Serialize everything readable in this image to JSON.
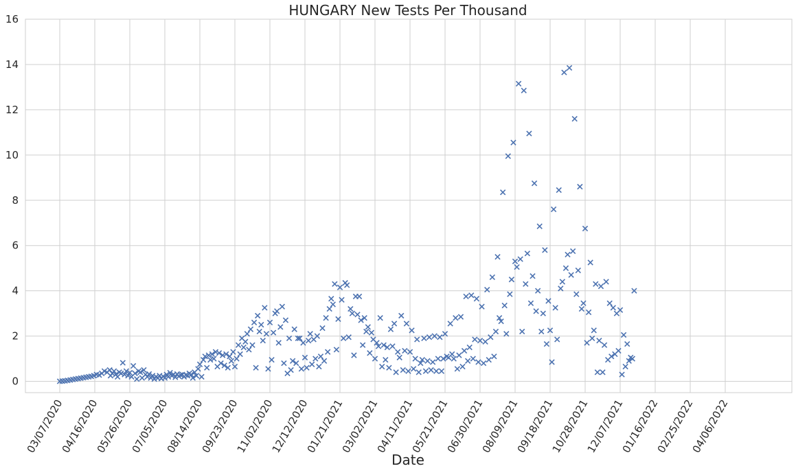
{
  "chart_data": {
    "type": "scatter",
    "title": "HUNGARY   New Tests Per Thousand",
    "xlabel": "Date",
    "ylabel": "",
    "ylim": [
      0,
      16
    ],
    "yticks": [
      0,
      2,
      4,
      6,
      8,
      10,
      12,
      14,
      16
    ],
    "xticks": [
      "03/07/2020",
      "04/16/2020",
      "05/26/2020",
      "07/05/2020",
      "08/14/2020",
      "09/23/2020",
      "11/02/2020",
      "12/12/2020",
      "01/21/2021",
      "03/02/2021",
      "04/11/2021",
      "05/21/2021",
      "06/30/2021",
      "08/09/2021",
      "09/18/2021",
      "10/28/2021",
      "12/07/2021",
      "01/16/2022",
      "02/25/2022",
      "04/06/2022"
    ],
    "grid": true,
    "marker": "x",
    "marker_color": "#4c72b0",
    "start_date": "03/07/2020",
    "series": [
      {
        "points": [
          [
            0,
            0
          ],
          [
            3,
            0.01
          ],
          [
            6,
            0.02
          ],
          [
            9,
            0.04
          ],
          [
            12,
            0.06
          ],
          [
            15,
            0.08
          ],
          [
            18,
            0.1
          ],
          [
            21,
            0.12
          ],
          [
            24,
            0.14
          ],
          [
            27,
            0.16
          ],
          [
            30,
            0.18
          ],
          [
            33,
            0.2
          ],
          [
            36,
            0.22
          ],
          [
            39,
            0.25
          ],
          [
            42,
            0.3
          ],
          [
            45,
            0.28
          ],
          [
            48,
            0.35
          ],
          [
            51,
            0.45
          ],
          [
            54,
            0.4
          ],
          [
            57,
            0.5
          ],
          [
            58,
            0.25
          ],
          [
            60,
            0.35
          ],
          [
            62,
            0.45
          ],
          [
            64,
            0.3
          ],
          [
            66,
            0.2
          ],
          [
            68,
            0.4
          ],
          [
            70,
            0.35
          ],
          [
            72,
            0.82
          ],
          [
            74,
            0.3
          ],
          [
            76,
            0.45
          ],
          [
            78,
            0.25
          ],
          [
            80,
            0.38
          ],
          [
            82,
            0.2
          ],
          [
            84,
            0.68
          ],
          [
            86,
            0.35
          ],
          [
            88,
            0.1
          ],
          [
            90,
            0.45
          ],
          [
            92,
            0.4
          ],
          [
            94,
            0.15
          ],
          [
            96,
            0.5
          ],
          [
            98,
            0.3
          ],
          [
            100,
            0.2
          ],
          [
            102,
            0.32
          ],
          [
            104,
            0.15
          ],
          [
            106,
            0.25
          ],
          [
            108,
            0.1
          ],
          [
            110,
            0.2
          ],
          [
            112,
            0.15
          ],
          [
            114,
            0.25
          ],
          [
            116,
            0.12
          ],
          [
            118,
            0.22
          ],
          [
            120,
            0.15
          ],
          [
            122,
            0.3
          ],
          [
            124,
            0.2
          ],
          [
            126,
            0.38
          ],
          [
            128,
            0.25
          ],
          [
            130,
            0.3
          ],
          [
            132,
            0.18
          ],
          [
            134,
            0.32
          ],
          [
            136,
            0.22
          ],
          [
            138,
            0.28
          ],
          [
            140,
            0.3
          ],
          [
            142,
            0.2
          ],
          [
            144,
            0.28
          ],
          [
            146,
            0.25
          ],
          [
            148,
            0.35
          ],
          [
            150,
            0.3
          ],
          [
            152,
            0.15
          ],
          [
            154,
            0.4
          ],
          [
            156,
            0.25
          ],
          [
            158,
            0.55
          ],
          [
            160,
            0.75
          ],
          [
            162,
            0.2
          ],
          [
            164,
            0.95
          ],
          [
            166,
            1.1
          ],
          [
            168,
            0.6
          ],
          [
            170,
            1.15
          ],
          [
            172,
            0.95
          ],
          [
            174,
            1.2
          ],
          [
            176,
            1.0
          ],
          [
            178,
            1.3
          ],
          [
            180,
            0.65
          ],
          [
            182,
            1.25
          ],
          [
            184,
            0.8
          ],
          [
            186,
            1.15
          ],
          [
            188,
            0.7
          ],
          [
            190,
            1.2
          ],
          [
            192,
            0.6
          ],
          [
            194,
            1.1
          ],
          [
            196,
            0.9
          ],
          [
            198,
            1.3
          ],
          [
            200,
            0.65
          ],
          [
            202,
            1.0
          ],
          [
            204,
            1.6
          ],
          [
            206,
            1.2
          ],
          [
            208,
            1.9
          ],
          [
            210,
            1.5
          ],
          [
            212,
            1.75
          ],
          [
            214,
            2.1
          ],
          [
            216,
            1.4
          ],
          [
            218,
            2.3
          ],
          [
            220,
            1.6
          ],
          [
            222,
            2.6
          ],
          [
            224,
            0.6
          ],
          [
            226,
            2.9
          ],
          [
            228,
            2.2
          ],
          [
            230,
            2.5
          ],
          [
            232,
            1.8
          ],
          [
            234,
            3.25
          ],
          [
            236,
            2.1
          ],
          [
            238,
            0.55
          ],
          [
            240,
            2.6
          ],
          [
            242,
            0.95
          ],
          [
            244,
            2.15
          ],
          [
            246,
            3.0
          ],
          [
            248,
            3.1
          ],
          [
            250,
            1.7
          ],
          [
            252,
            2.4
          ],
          [
            254,
            3.3
          ],
          [
            256,
            0.8
          ],
          [
            258,
            2.7
          ],
          [
            260,
            0.35
          ],
          [
            262,
            1.9
          ],
          [
            264,
            0.5
          ],
          [
            266,
            0.9
          ],
          [
            268,
            2.3
          ],
          [
            270,
            0.8
          ],
          [
            272,
            1.9
          ],
          [
            274,
            1.9
          ],
          [
            276,
            0.55
          ],
          [
            278,
            1.7
          ],
          [
            280,
            1.05
          ],
          [
            282,
            0.6
          ],
          [
            284,
            1.8
          ],
          [
            286,
            2.1
          ],
          [
            288,
            0.75
          ],
          [
            290,
            1.85
          ],
          [
            292,
            1.0
          ],
          [
            294,
            2.0
          ],
          [
            296,
            0.65
          ],
          [
            298,
            1.1
          ],
          [
            300,
            2.35
          ],
          [
            302,
            0.9
          ],
          [
            304,
            2.8
          ],
          [
            306,
            1.3
          ],
          [
            308,
            3.2
          ],
          [
            310,
            3.65
          ],
          [
            312,
            3.4
          ],
          [
            314,
            4.3
          ],
          [
            316,
            1.4
          ],
          [
            318,
            2.75
          ],
          [
            320,
            4.15
          ],
          [
            322,
            3.6
          ],
          [
            324,
            1.9
          ],
          [
            326,
            4.35
          ],
          [
            328,
            4.25
          ],
          [
            330,
            1.95
          ],
          [
            332,
            3.2
          ],
          [
            334,
            3.0
          ],
          [
            336,
            1.15
          ],
          [
            338,
            3.75
          ],
          [
            340,
            2.95
          ],
          [
            342,
            3.75
          ],
          [
            344,
            2.7
          ],
          [
            346,
            1.6
          ],
          [
            348,
            2.8
          ],
          [
            350,
            2.2
          ],
          [
            352,
            2.4
          ],
          [
            354,
            1.25
          ],
          [
            356,
            2.15
          ],
          [
            358,
            1.85
          ],
          [
            360,
            1.0
          ],
          [
            362,
            1.7
          ],
          [
            364,
            1.55
          ],
          [
            366,
            2.8
          ],
          [
            368,
            0.65
          ],
          [
            370,
            1.6
          ],
          [
            372,
            0.95
          ],
          [
            374,
            1.5
          ],
          [
            376,
            0.6
          ],
          [
            378,
            2.3
          ],
          [
            380,
            1.55
          ],
          [
            382,
            2.55
          ],
          [
            384,
            0.4
          ],
          [
            386,
            1.3
          ],
          [
            388,
            1.05
          ],
          [
            390,
            2.9
          ],
          [
            392,
            0.5
          ],
          [
            394,
            1.35
          ],
          [
            396,
            2.55
          ],
          [
            398,
            0.45
          ],
          [
            400,
            1.3
          ],
          [
            402,
            2.25
          ],
          [
            404,
            0.55
          ],
          [
            406,
            1.0
          ],
          [
            408,
            1.85
          ],
          [
            410,
            0.4
          ],
          [
            412,
            0.8
          ],
          [
            414,
            0.95
          ],
          [
            416,
            1.9
          ],
          [
            418,
            0.45
          ],
          [
            420,
            0.9
          ],
          [
            422,
            1.95
          ],
          [
            424,
            0.5
          ],
          [
            426,
            0.85
          ],
          [
            428,
            2.0
          ],
          [
            430,
            0.45
          ],
          [
            432,
            1.0
          ],
          [
            434,
            1.95
          ],
          [
            436,
            0.45
          ],
          [
            438,
            1.0
          ],
          [
            440,
            2.1
          ],
          [
            442,
            1.1
          ],
          [
            444,
            1.05
          ],
          [
            446,
            2.55
          ],
          [
            448,
            1.2
          ],
          [
            450,
            1.0
          ],
          [
            452,
            2.8
          ],
          [
            454,
            0.55
          ],
          [
            456,
            1.15
          ],
          [
            458,
            2.85
          ],
          [
            460,
            0.65
          ],
          [
            462,
            1.35
          ],
          [
            464,
            3.75
          ],
          [
            466,
            0.9
          ],
          [
            468,
            1.5
          ],
          [
            470,
            3.8
          ],
          [
            472,
            1.0
          ],
          [
            474,
            1.85
          ],
          [
            476,
            3.65
          ],
          [
            478,
            0.85
          ],
          [
            480,
            1.8
          ],
          [
            482,
            3.3
          ],
          [
            484,
            0.8
          ],
          [
            486,
            1.75
          ],
          [
            488,
            4.05
          ],
          [
            490,
            0.95
          ],
          [
            492,
            1.95
          ],
          [
            494,
            4.6
          ],
          [
            496,
            1.1
          ],
          [
            498,
            2.2
          ],
          [
            500,
            5.5
          ],
          [
            502,
            2.8
          ],
          [
            504,
            2.65
          ],
          [
            506,
            8.35
          ],
          [
            508,
            3.35
          ],
          [
            510,
            2.1
          ],
          [
            512,
            9.95
          ],
          [
            514,
            3.85
          ],
          [
            516,
            4.5
          ],
          [
            518,
            10.55
          ],
          [
            520,
            5.3
          ],
          [
            522,
            5.05
          ],
          [
            524,
            13.15
          ],
          [
            526,
            5.4
          ],
          [
            528,
            2.2
          ],
          [
            530,
            12.85
          ],
          [
            532,
            4.3
          ],
          [
            534,
            5.65
          ],
          [
            536,
            10.95
          ],
          [
            538,
            3.45
          ],
          [
            540,
            4.65
          ],
          [
            542,
            8.75
          ],
          [
            544,
            3.1
          ],
          [
            546,
            4.0
          ],
          [
            548,
            6.85
          ],
          [
            550,
            2.2
          ],
          [
            552,
            3.0
          ],
          [
            554,
            5.8
          ],
          [
            556,
            1.65
          ],
          [
            558,
            3.55
          ],
          [
            560,
            2.25
          ],
          [
            562,
            0.85
          ],
          [
            564,
            7.6
          ],
          [
            566,
            3.25
          ],
          [
            568,
            1.85
          ],
          [
            570,
            8.45
          ],
          [
            572,
            4.1
          ],
          [
            574,
            4.4
          ],
          [
            576,
            13.65
          ],
          [
            578,
            5.0
          ],
          [
            580,
            5.6
          ],
          [
            582,
            13.85
          ],
          [
            584,
            4.7
          ],
          [
            586,
            5.75
          ],
          [
            588,
            11.6
          ],
          [
            590,
            3.85
          ],
          [
            592,
            4.9
          ],
          [
            594,
            8.6
          ],
          [
            596,
            3.2
          ],
          [
            598,
            3.45
          ],
          [
            600,
            6.75
          ],
          [
            602,
            1.7
          ],
          [
            604,
            3.05
          ],
          [
            606,
            5.25
          ],
          [
            608,
            1.9
          ],
          [
            610,
            2.25
          ],
          [
            612,
            4.3
          ],
          [
            614,
            0.4
          ],
          [
            616,
            1.8
          ],
          [
            618,
            4.2
          ],
          [
            620,
            0.4
          ],
          [
            622,
            1.6
          ],
          [
            624,
            4.4
          ],
          [
            626,
            0.95
          ],
          [
            628,
            3.45
          ],
          [
            630,
            1.1
          ],
          [
            632,
            3.25
          ],
          [
            634,
            1.2
          ],
          [
            636,
            3.0
          ],
          [
            638,
            1.35
          ],
          [
            640,
            3.15
          ],
          [
            642,
            0.3
          ],
          [
            644,
            2.05
          ],
          [
            646,
            0.65
          ],
          [
            648,
            1.65
          ],
          [
            650,
            0.9
          ],
          [
            652,
            1.05
          ],
          [
            654,
            1.0
          ],
          [
            656,
            4.0
          ]
        ]
      }
    ]
  }
}
